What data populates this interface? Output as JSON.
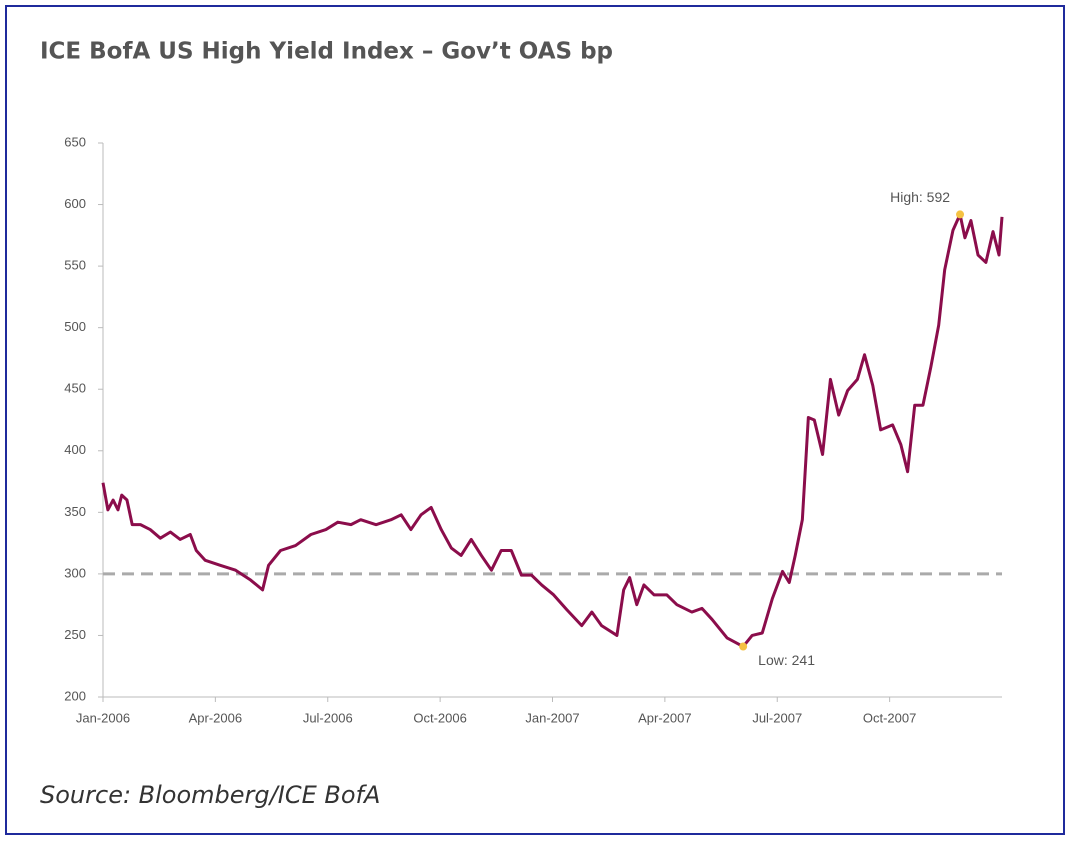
{
  "chart_data": {
    "type": "line",
    "title": "ICE BofA US High Yield Index – Gov’t OAS bp",
    "source": "Source: Bloomberg/ICE BofA",
    "color": "#8b0d4b",
    "x": [
      0,
      0.13,
      0.27,
      0.4,
      0.5,
      0.64,
      0.78,
      1.0,
      1.26,
      1.53,
      1.8,
      2.06,
      2.33,
      2.49,
      2.73,
      3.13,
      3.54,
      3.94,
      4.26,
      4.42,
      4.74,
      5.14,
      5.55,
      5.95,
      6.27,
      6.62,
      6.88,
      7.29,
      7.69,
      7.96,
      8.22,
      8.49,
      8.76,
      9.03,
      9.3,
      9.56,
      9.83,
      10.1,
      10.37,
      10.63,
      10.9,
      11.17,
      11.44,
      11.71,
      12.03,
      12.38,
      12.78,
      13.05,
      13.31,
      13.72,
      13.9,
      14.06,
      14.25,
      14.44,
      14.71,
      15.05,
      15.32,
      15.72,
      15.99,
      16.26,
      16.66,
      17.09,
      17.33,
      17.6,
      17.87,
      18.14,
      18.32,
      18.48,
      18.67,
      18.83,
      18.99,
      19.21,
      19.42,
      19.64,
      19.88,
      20.14,
      20.33,
      20.55,
      20.76,
      21.08,
      21.3,
      21.48,
      21.67,
      21.89,
      22.1,
      22.31,
      22.47,
      22.69,
      22.88,
      23.01,
      23.17,
      23.36,
      23.57,
      23.76,
      23.92,
      24
    ],
    "values": [
      374,
      352,
      360,
      352,
      364,
      360,
      340,
      340,
      336,
      329,
      334,
      328,
      332,
      319,
      311,
      307,
      303,
      295,
      287,
      307,
      319,
      323,
      332,
      336,
      342,
      340,
      344,
      340,
      344,
      348,
      336,
      348,
      354,
      336,
      321,
      315,
      328,
      315,
      303,
      319,
      319,
      299,
      299,
      291,
      283,
      271,
      258,
      269,
      258,
      250,
      287,
      297,
      275,
      291,
      283,
      283,
      275,
      269,
      272,
      263,
      248,
      241,
      250,
      252,
      280,
      302,
      293,
      315,
      344,
      427,
      425,
      397,
      458,
      429,
      449,
      458,
      478,
      453,
      417,
      421,
      405,
      383,
      437,
      437,
      468,
      502,
      547,
      579,
      592,
      573,
      587,
      559,
      553,
      578,
      559,
      590
    ],
    "xlim": [
      0,
      24
    ],
    "xticks": [
      {
        "value": 0,
        "label": "Jan-2006"
      },
      {
        "value": 3,
        "label": "Apr-2006"
      },
      {
        "value": 6,
        "label": "Jul-2006"
      },
      {
        "value": 9,
        "label": "Oct-2006"
      },
      {
        "value": 12,
        "label": "Jan-2007"
      },
      {
        "value": 15,
        "label": "Apr-2007"
      },
      {
        "value": 18,
        "label": "Jul-2007"
      },
      {
        "value": 21,
        "label": "Oct-2007"
      }
    ],
    "ylim": [
      200,
      650
    ],
    "yticks": [
      200,
      250,
      300,
      350,
      400,
      450,
      500,
      550,
      600,
      650
    ],
    "reference_line": 300,
    "annotations": [
      {
        "text": "High: 592",
        "x": 22.88,
        "y": 592
      },
      {
        "text": "Low: 241",
        "x": 17.09,
        "y": 241
      }
    ]
  }
}
